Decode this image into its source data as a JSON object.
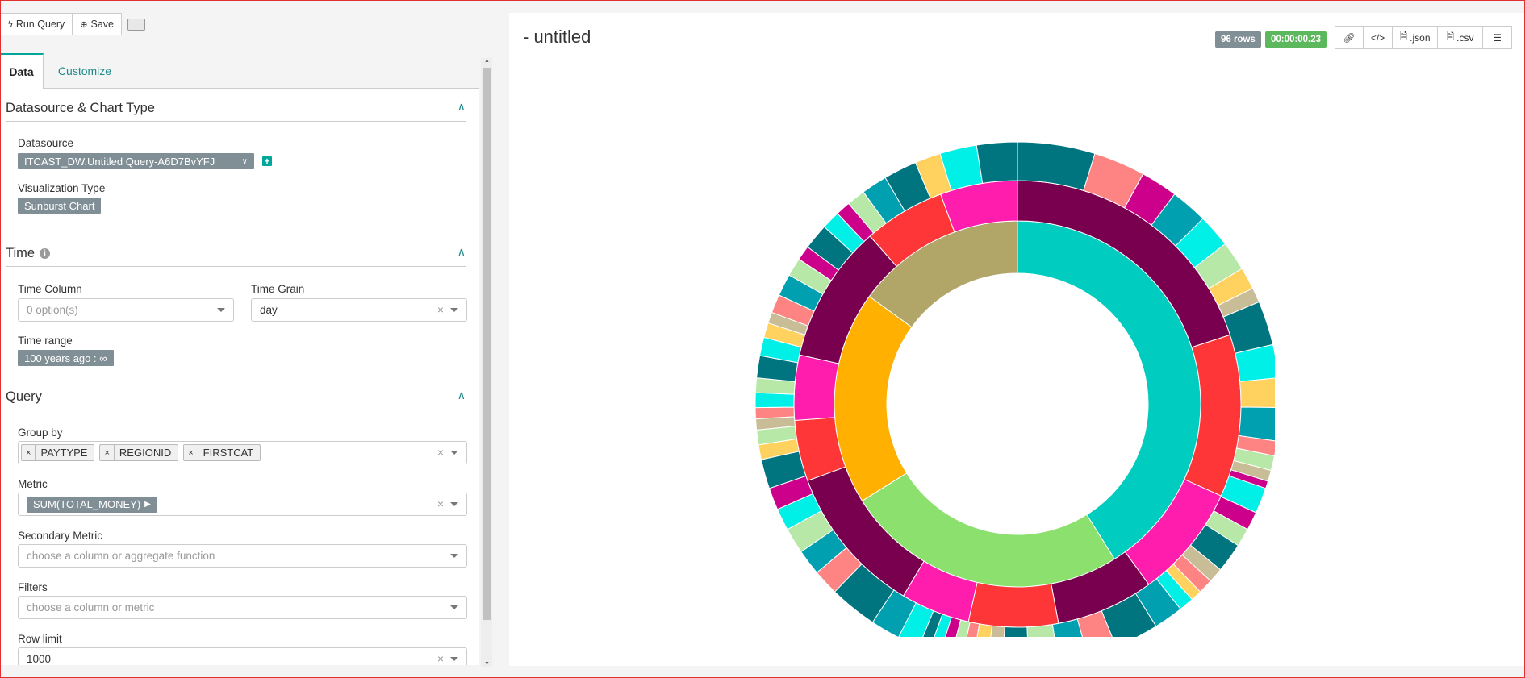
{
  "toolbar": {
    "run_label": "Run Query",
    "save_label": "Save"
  },
  "tabs": [
    {
      "label": "Data"
    },
    {
      "label": "Customize"
    }
  ],
  "sections": {
    "datasource": {
      "title": "Datasource & Chart Type",
      "datasource_label": "Datasource",
      "datasource_value": "ITCAST_DW.Untitled Query-A6D7BvYFJ",
      "viz_label": "Visualization Type",
      "viz_value": "Sunburst Chart"
    },
    "time": {
      "title": "Time",
      "time_column_label": "Time Column",
      "time_column_placeholder": "0 option(s)",
      "time_grain_label": "Time Grain",
      "time_grain_value": "day",
      "time_range_label": "Time range",
      "time_range_value": "100 years ago : ∞"
    },
    "query": {
      "title": "Query",
      "group_by_label": "Group by",
      "group_by": [
        "PAYTYPE",
        "REGIONID",
        "FIRSTCAT"
      ],
      "metric_label": "Metric",
      "metric_value": "SUM(TOTAL_MONEY)",
      "secondary_label": "Secondary Metric",
      "secondary_placeholder": "choose a column or aggregate function",
      "filters_label": "Filters",
      "filters_placeholder": "choose a column or metric",
      "row_limit_label": "Row limit",
      "row_limit_value": "1000"
    }
  },
  "chart": {
    "title": "- untitled",
    "rows_badge": "96 rows",
    "time_badge": "00:00:00.23",
    "json_label": ".json",
    "csv_label": ".csv"
  },
  "colors": {
    "accent": "#00a699",
    "rows_badge": "#808e95",
    "time_badge": "#5cb85c"
  },
  "sunburst": {
    "inner": [
      {
        "color": "#00cdbf",
        "value": 148
      },
      {
        "color": "#8be06e",
        "value": 90
      },
      {
        "color": "#ffb000",
        "value": 68
      },
      {
        "color": "#b1a567",
        "value": 54
      }
    ],
    "middle": [
      {
        "color": "#79004f",
        "value": 68
      },
      {
        "color": "#ff3637",
        "value": 40
      },
      {
        "color": "#ff1dad",
        "value": 28
      },
      {
        "color": "#79004f",
        "value": 24
      },
      {
        "color": "#ff3637",
        "value": 22
      },
      {
        "color": "#ff1dad",
        "value": 17
      },
      {
        "color": "#79004f",
        "value": 37
      },
      {
        "color": "#ff3637",
        "value": 15
      },
      {
        "color": "#ff1dad",
        "value": 16
      },
      {
        "color": "#79004f",
        "value": 34
      },
      {
        "color": "#ff3637",
        "value": 20
      },
      {
        "color": "#ff1dad",
        "value": 19
      }
    ],
    "outer": [
      {
        "color": "#007580",
        "value": 21
      },
      {
        "color": "#fe8484",
        "value": 14
      },
      {
        "color": "#cc008a",
        "value": 10
      },
      {
        "color": "#00a0b0",
        "value": 10
      },
      {
        "color": "#00f0e8",
        "value": 9
      },
      {
        "color": "#b7e8a7",
        "value": 8
      },
      {
        "color": "#ffd15e",
        "value": 6
      },
      {
        "color": "#c8bd96",
        "value": 4
      },
      {
        "color": "#007580",
        "value": 12
      },
      {
        "color": "#00f0e8",
        "value": 9
      },
      {
        "color": "#ffd15e",
        "value": 8
      },
      {
        "color": "#00a0b0",
        "value": 9
      },
      {
        "color": "#fe8484",
        "value": 4
      },
      {
        "color": "#b7e8a7",
        "value": 4
      },
      {
        "color": "#c8bd96",
        "value": 3
      },
      {
        "color": "#cc008a",
        "value": 2
      },
      {
        "color": "#00f0e8",
        "value": 7
      },
      {
        "color": "#cc008a",
        "value": 5
      },
      {
        "color": "#b7e8a7",
        "value": 5
      },
      {
        "color": "#007580",
        "value": 8
      },
      {
        "color": "#c8bd96",
        "value": 4
      },
      {
        "color": "#fe8484",
        "value": 4
      },
      {
        "color": "#ffd15e",
        "value": 3
      },
      {
        "color": "#00f0e8",
        "value": 4
      },
      {
        "color": "#00a0b0",
        "value": 8
      },
      {
        "color": "#007580",
        "value": 12
      },
      {
        "color": "#fe8484",
        "value": 8
      },
      {
        "color": "#00a0b0",
        "value": 8
      },
      {
        "color": "#b7e8a7",
        "value": 8
      },
      {
        "color": "#007580",
        "value": 7
      },
      {
        "color": "#c8bd96",
        "value": 4
      },
      {
        "color": "#ffd15e",
        "value": 4
      },
      {
        "color": "#fe8484",
        "value": 3
      },
      {
        "color": "#b7e8a7",
        "value": 3
      },
      {
        "color": "#cc008a",
        "value": 3
      },
      {
        "color": "#00f0e8",
        "value": 3
      },
      {
        "color": "#007580",
        "value": 3
      },
      {
        "color": "#00f0e8",
        "value": 6
      },
      {
        "color": "#00a0b0",
        "value": 8
      },
      {
        "color": "#007580",
        "value": 13
      },
      {
        "color": "#fe8484",
        "value": 7
      },
      {
        "color": "#00a0b0",
        "value": 7
      },
      {
        "color": "#b7e8a7",
        "value": 7
      },
      {
        "color": "#00f0e8",
        "value": 6
      },
      {
        "color": "#cc008a",
        "value": 6
      },
      {
        "color": "#007580",
        "value": 8
      },
      {
        "color": "#ffd15e",
        "value": 4
      },
      {
        "color": "#b7e8a7",
        "value": 4
      },
      {
        "color": "#c8bd96",
        "value": 3
      },
      {
        "color": "#fe8484",
        "value": 3
      },
      {
        "color": "#00f0e8",
        "value": 4
      },
      {
        "color": "#b7e8a7",
        "value": 4
      },
      {
        "color": "#007580",
        "value": 6
      },
      {
        "color": "#00f0e8",
        "value": 5
      },
      {
        "color": "#ffd15e",
        "value": 4
      },
      {
        "color": "#c8bd96",
        "value": 3
      },
      {
        "color": "#fe8484",
        "value": 5
      },
      {
        "color": "#00a0b0",
        "value": 6
      },
      {
        "color": "#b7e8a7",
        "value": 5
      },
      {
        "color": "#cc008a",
        "value": 4
      },
      {
        "color": "#007580",
        "value": 7
      },
      {
        "color": "#00f0e8",
        "value": 5
      },
      {
        "color": "#cc008a",
        "value": 4
      },
      {
        "color": "#b7e8a7",
        "value": 5
      },
      {
        "color": "#00a0b0",
        "value": 7
      },
      {
        "color": "#007580",
        "value": 9
      },
      {
        "color": "#ffd15e",
        "value": 7
      },
      {
        "color": "#00f0e8",
        "value": 10
      },
      {
        "color": "#007580",
        "value": 11
      }
    ]
  }
}
